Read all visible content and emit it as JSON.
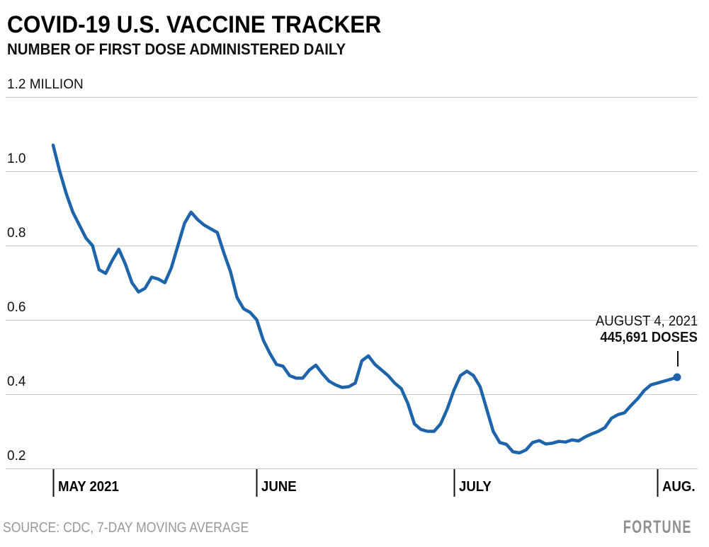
{
  "header": {
    "title": "COVID-19 U.S. VACCINE TRACKER",
    "subtitle": "NUMBER OF FIRST DOSE ADMINISTERED DAILY"
  },
  "annotation": {
    "line1": "AUGUST 4, 2021",
    "line2": "445,691 DOSES"
  },
  "footer": {
    "source": "SOURCE: CDC, 7-DAY MOVING AVERAGE",
    "logo": "FORTUNE"
  },
  "colors": {
    "line": "#1d64ab",
    "grid": "#c7c7c7",
    "tick": "#111111",
    "text": "#000000",
    "muted": "#999999",
    "logo": "#8f8f8f"
  },
  "chart_data": {
    "type": "line",
    "title": "COVID-19 U.S. VACCINE TRACKER",
    "subtitle": "NUMBER OF FIRST DOSE ADMINISTERED DAILY",
    "unit": "million first doses per day (7-day moving average)",
    "ylim": [
      0.2,
      1.2
    ],
    "grid": true,
    "legend": "none",
    "y_ticks": [
      {
        "label": "1.2 MILLION",
        "value": 1.2
      },
      {
        "label": "1.0",
        "value": 1.0
      },
      {
        "label": "0.8",
        "value": 0.8
      },
      {
        "label": "0.6",
        "value": 0.6
      },
      {
        "label": "0.4",
        "value": 0.4
      },
      {
        "label": "0.2",
        "value": 0.2
      }
    ],
    "x_ticks": [
      {
        "label": "MAY 2021",
        "day_index": 0
      },
      {
        "label": "JUNE",
        "day_index": 31
      },
      {
        "label": "JULY",
        "day_index": 61
      },
      {
        "label": "AUG.",
        "day_index": 92
      }
    ],
    "start_label": "MAY 2021",
    "series": [
      {
        "name": "First doses administered daily, 7-day moving average (millions)",
        "values": [
          1.07,
          1.0,
          0.94,
          0.89,
          0.855,
          0.82,
          0.8,
          0.735,
          0.725,
          0.76,
          0.79,
          0.75,
          0.7,
          0.675,
          0.685,
          0.715,
          0.71,
          0.7,
          0.74,
          0.8,
          0.86,
          0.89,
          0.87,
          0.855,
          0.845,
          0.835,
          0.78,
          0.73,
          0.66,
          0.63,
          0.62,
          0.6,
          0.545,
          0.51,
          0.48,
          0.475,
          0.45,
          0.443,
          0.443,
          0.465,
          0.478,
          0.455,
          0.435,
          0.425,
          0.418,
          0.42,
          0.43,
          0.49,
          0.503,
          0.48,
          0.465,
          0.45,
          0.43,
          0.415,
          0.375,
          0.32,
          0.305,
          0.3,
          0.3,
          0.32,
          0.36,
          0.41,
          0.45,
          0.462,
          0.45,
          0.42,
          0.36,
          0.3,
          0.27,
          0.265,
          0.245,
          0.242,
          0.25,
          0.27,
          0.275,
          0.266,
          0.268,
          0.273,
          0.271,
          0.277,
          0.274,
          0.285,
          0.293,
          0.3,
          0.31,
          0.335,
          0.345,
          0.35,
          0.37,
          0.388,
          0.41,
          0.425,
          0.43,
          0.435,
          0.44,
          0.445691
        ]
      }
    ],
    "last_point": {
      "date_label": "AUGUST 4, 2021",
      "value": 0.445691,
      "value_label": "445,691 DOSES"
    }
  }
}
